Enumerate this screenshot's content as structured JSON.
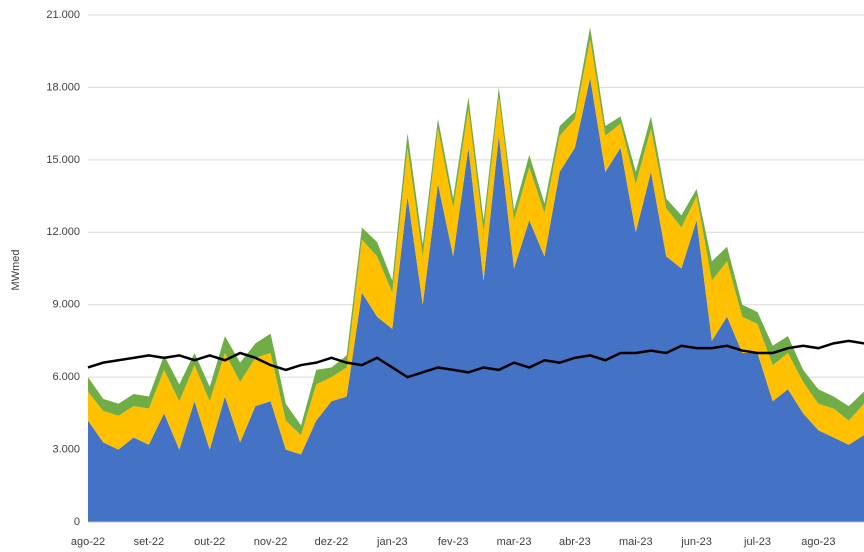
{
  "chart_data": {
    "type": "stacked-area",
    "y_label": "MWmed",
    "categories": [
      "ago-22",
      null,
      null,
      null,
      "set-22",
      null,
      null,
      null,
      "out-22",
      null,
      null,
      null,
      "nov-22",
      null,
      null,
      null,
      "dez-22",
      null,
      null,
      null,
      "jan-23",
      null,
      null,
      null,
      "fev-23",
      null,
      null,
      null,
      "mar-23",
      null,
      null,
      null,
      "abr-23",
      null,
      null,
      null,
      "mai-23",
      null,
      null,
      null,
      "jun-23",
      null,
      null,
      null,
      "jul-23",
      null,
      null,
      null,
      "ago-23",
      null,
      null,
      null
    ],
    "series": [
      {
        "color": "#4472c4",
        "values": [
          4200,
          3300,
          3000,
          3500,
          3200,
          4500,
          3000,
          5000,
          3000,
          5200,
          3300,
          4800,
          5000,
          3000,
          2800,
          4200,
          5000,
          5200,
          9500,
          8500,
          8000,
          13500,
          9000,
          14000,
          11000,
          15500,
          10000,
          16000,
          10500,
          12500,
          11000,
          14500,
          15500,
          18400,
          14500,
          15500,
          12000,
          14500,
          11000,
          10500,
          12500,
          7500,
          8500,
          7000,
          7000,
          5000,
          5500,
          4500,
          3800,
          3500,
          3200,
          3600
        ]
      },
      {
        "color": "#ffc000",
        "values": [
          1200,
          1300,
          1400,
          1300,
          1500,
          1800,
          2000,
          1500,
          2000,
          1800,
          2500,
          2000,
          2000,
          1200,
          800,
          1500,
          1000,
          1200,
          2200,
          2500,
          1500,
          2000,
          2000,
          2300,
          2000,
          1600,
          2000,
          1600,
          2000,
          2200,
          1800,
          1500,
          1200,
          1600,
          1500,
          1000,
          2000,
          1800,
          2000,
          1700,
          1000,
          2500,
          2300,
          1500,
          1200,
          1500,
          1500,
          1300,
          1100,
          1200,
          1000,
          1300
        ]
      },
      {
        "color": "#70ad47",
        "values": [
          600,
          500,
          500,
          500,
          500,
          600,
          700,
          500,
          600,
          700,
          800,
          600,
          800,
          700,
          400,
          600,
          400,
          500,
          500,
          600,
          500,
          600,
          500,
          400,
          400,
          500,
          500,
          400,
          400,
          500,
          400,
          400,
          300,
          500,
          400,
          300,
          500,
          500,
          400,
          500,
          300,
          800,
          600,
          500,
          500,
          800,
          700,
          500,
          600,
          500,
          600,
          500
        ]
      },
      {
        "type": "line",
        "color": "#000000",
        "values": [
          6400,
          6600,
          6700,
          6800,
          6900,
          6800,
          6900,
          6700,
          6900,
          6700,
          7000,
          6800,
          6500,
          6300,
          6500,
          6600,
          6800,
          6600,
          6500,
          6800,
          6400,
          6000,
          6200,
          6400,
          6300,
          6200,
          6400,
          6300,
          6600,
          6400,
          6700,
          6600,
          6800,
          6900,
          6700,
          7000,
          7000,
          7100,
          7000,
          7300,
          7200,
          7200,
          7300,
          7100,
          7000,
          7000,
          7200,
          7300,
          7200,
          7400,
          7500,
          7400
        ]
      }
    ],
    "ylim": [
      0,
      21000
    ],
    "yticks": [
      0,
      {
        "value": 3000,
        "label": "3.000"
      },
      {
        "value": 6000,
        "label": "6.000"
      },
      {
        "value": 9000,
        "label": "9.000"
      },
      {
        "value": 12000,
        "label": "12.000"
      },
      {
        "value": 15000,
        "label": "15.000"
      },
      {
        "value": 18000,
        "label": "18.000"
      },
      {
        "value": 21000,
        "label": "21.000"
      }
    ],
    "grid": true
  }
}
